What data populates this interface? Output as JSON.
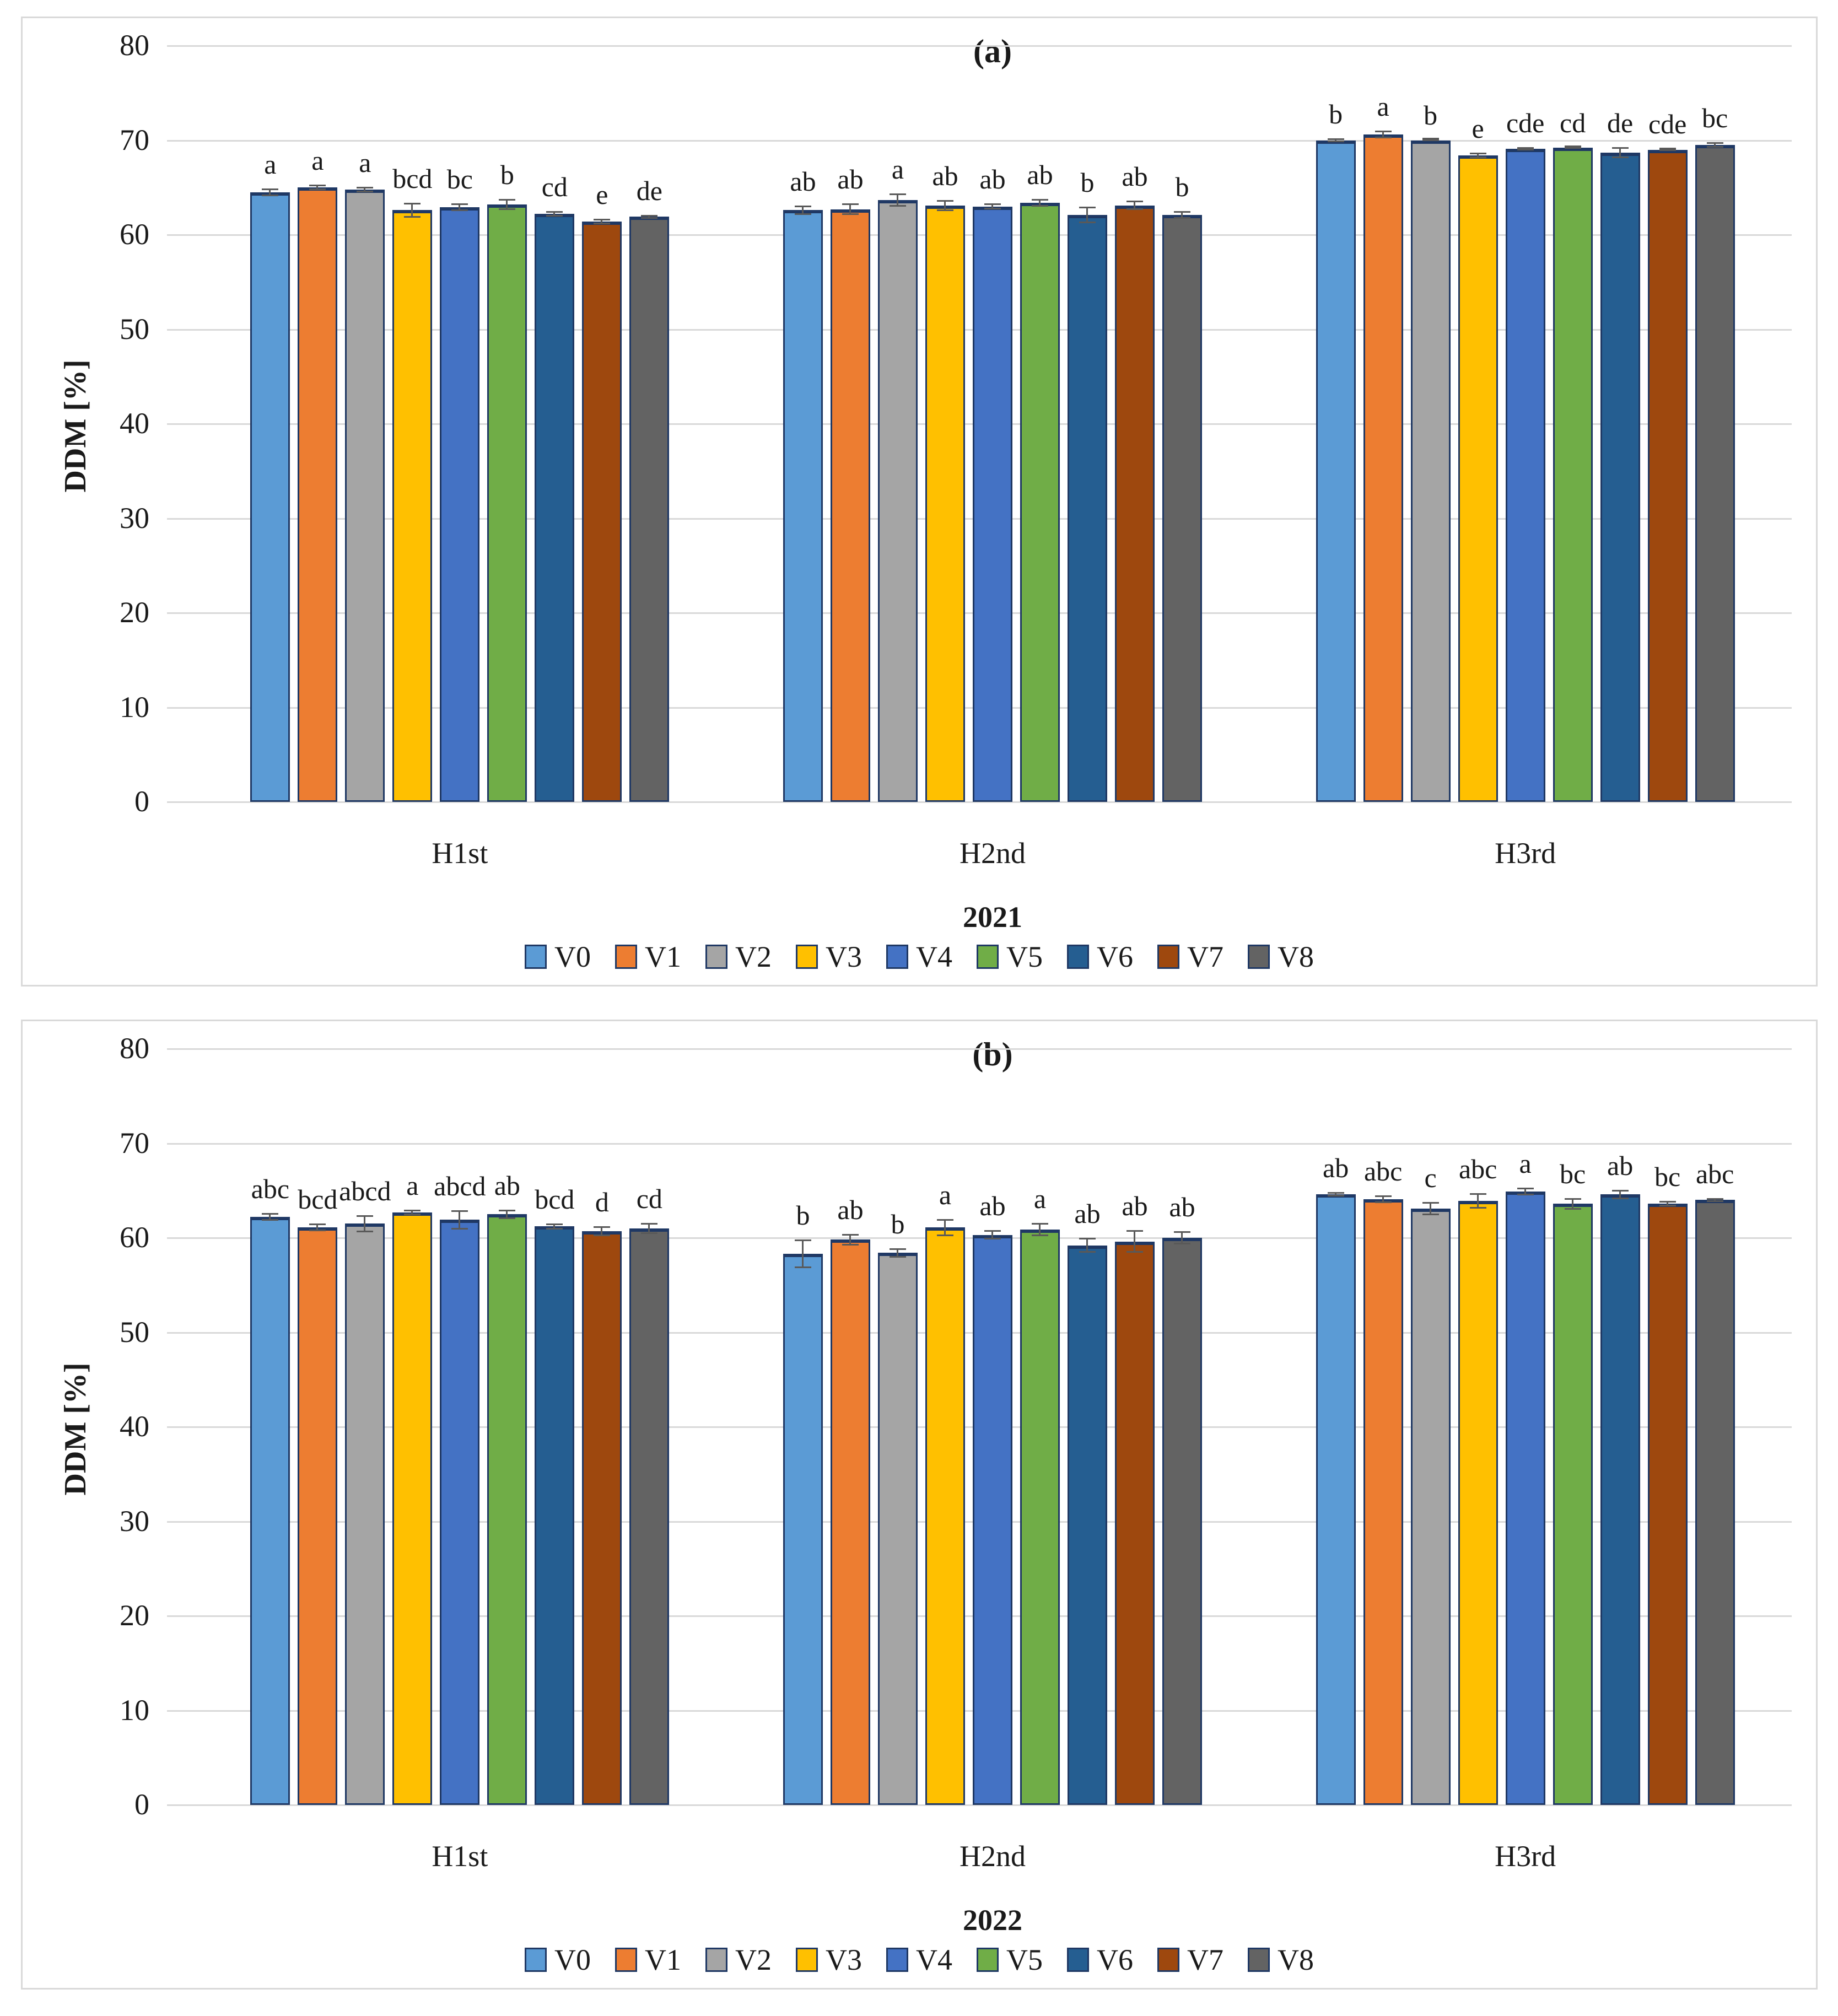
{
  "figure": {
    "description_visible_text_only": true,
    "legend_labels": [
      "V0",
      "V1",
      "V2",
      "V3",
      "V4",
      "V5",
      "V6",
      "V7",
      "V8"
    ],
    "series_colors": [
      "#5B9BD5",
      "#ED7D31",
      "#A5A5A5",
      "#FFC000",
      "#4472C4",
      "#70AD47",
      "#255E91",
      "#9E480E",
      "#636363"
    ],
    "bar_border_color": "#1F3864",
    "error_bar_color": "#595959",
    "gridline_color": "#D9D9D9"
  },
  "chart_data": [
    {
      "type": "bar",
      "title": "(a)",
      "year_label": "2021",
      "ylabel": "DDM [%]",
      "xlabel": "",
      "ylim": [
        0,
        80
      ],
      "yticks": [
        0,
        10,
        20,
        30,
        40,
        50,
        60,
        70,
        80
      ],
      "grid": true,
      "legend_position": "bottom",
      "categories": [
        "H1st",
        "H2nd",
        "H3rd"
      ],
      "series": [
        {
          "name": "V0",
          "color": "#5B9BD5",
          "values": [
            64.5,
            62.6,
            70.0
          ],
          "errors": [
            0.4,
            0.5,
            0.2
          ],
          "letters": [
            "a",
            "ab",
            "b"
          ]
        },
        {
          "name": "V1",
          "color": "#ED7D31",
          "values": [
            65.0,
            62.7,
            70.6
          ],
          "errors": [
            0.3,
            0.6,
            0.4
          ],
          "letters": [
            "a",
            "ab",
            "a"
          ]
        },
        {
          "name": "V2",
          "color": "#A5A5A5",
          "values": [
            64.8,
            63.7,
            70.0
          ],
          "errors": [
            0.3,
            0.7,
            0.1
          ],
          "letters": [
            "a",
            "a",
            "b"
          ]
        },
        {
          "name": "V3",
          "color": "#FFC000",
          "values": [
            62.6,
            63.1,
            68.4
          ],
          "errors": [
            0.8,
            0.6,
            0.3
          ],
          "letters": [
            "bcd",
            "ab",
            "e"
          ]
        },
        {
          "name": "V4",
          "color": "#4472C4",
          "values": [
            62.9,
            63.0,
            69.1
          ],
          "errors": [
            0.4,
            0.3,
            0.15
          ],
          "letters": [
            "bc",
            "ab",
            "cde"
          ]
        },
        {
          "name": "V5",
          "color": "#70AD47",
          "values": [
            63.2,
            63.4,
            69.2
          ],
          "errors": [
            0.6,
            0.4,
            0.1
          ],
          "letters": [
            "b",
            "ab",
            "cd"
          ]
        },
        {
          "name": "V6",
          "color": "#255E91",
          "values": [
            62.2,
            62.1,
            68.7
          ],
          "errors": [
            0.3,
            0.9,
            0.6
          ],
          "letters": [
            "cd",
            "b",
            "de"
          ]
        },
        {
          "name": "V7",
          "color": "#9E480E",
          "values": [
            61.4,
            63.1,
            69.0
          ],
          "errors": [
            0.3,
            0.5,
            0.15
          ],
          "letters": [
            "e",
            "ab",
            "cde"
          ]
        },
        {
          "name": "V8",
          "color": "#636363",
          "values": [
            61.9,
            62.1,
            69.5
          ],
          "errors": [
            0.2,
            0.4,
            0.3
          ],
          "letters": [
            "de",
            "b",
            "bc"
          ]
        }
      ]
    },
    {
      "type": "bar",
      "title": "(b)",
      "year_label": "2022",
      "ylabel": "DDM [%]",
      "xlabel": "",
      "ylim": [
        0,
        80
      ],
      "yticks": [
        0,
        10,
        20,
        30,
        40,
        50,
        60,
        70,
        80
      ],
      "grid": true,
      "legend_position": "bottom",
      "categories": [
        "H1st",
        "H2nd",
        "H3rd"
      ],
      "series": [
        {
          "name": "V0",
          "color": "#5B9BD5",
          "values": [
            62.2,
            58.3,
            64.6
          ],
          "errors": [
            0.4,
            1.5,
            0.25
          ],
          "letters": [
            "abc",
            "b",
            "ab"
          ]
        },
        {
          "name": "V1",
          "color": "#ED7D31",
          "values": [
            61.1,
            59.8,
            64.1
          ],
          "errors": [
            0.4,
            0.6,
            0.4
          ],
          "letters": [
            "bcd",
            "ab",
            "abc"
          ]
        },
        {
          "name": "V2",
          "color": "#A5A5A5",
          "values": [
            61.5,
            58.4,
            63.1
          ],
          "errors": [
            0.9,
            0.5,
            0.7
          ],
          "letters": [
            "abcd",
            "b",
            "c"
          ]
        },
        {
          "name": "V3",
          "color": "#FFC000",
          "values": [
            62.7,
            61.1,
            63.9
          ],
          "errors": [
            0.3,
            0.9,
            0.8
          ],
          "letters": [
            "a",
            "a",
            "abc"
          ]
        },
        {
          "name": "V4",
          "color": "#4472C4",
          "values": [
            61.9,
            60.3,
            64.9
          ],
          "errors": [
            1.0,
            0.5,
            0.4
          ],
          "letters": [
            "abcd",
            "ab",
            "a"
          ]
        },
        {
          "name": "V5",
          "color": "#70AD47",
          "values": [
            62.5,
            60.9,
            63.6
          ],
          "errors": [
            0.5,
            0.7,
            0.6
          ],
          "letters": [
            "ab",
            "a",
            "bc"
          ]
        },
        {
          "name": "V6",
          "color": "#255E91",
          "values": [
            61.2,
            59.2,
            64.6
          ],
          "errors": [
            0.3,
            0.8,
            0.5
          ],
          "letters": [
            "bcd",
            "ab",
            "ab"
          ]
        },
        {
          "name": "V7",
          "color": "#9E480E",
          "values": [
            60.7,
            59.6,
            63.6
          ],
          "errors": [
            0.5,
            1.2,
            0.3
          ],
          "letters": [
            "d",
            "ab",
            "bc"
          ]
        },
        {
          "name": "V8",
          "color": "#636363",
          "values": [
            61.0,
            60.0,
            64.0
          ],
          "errors": [
            0.6,
            0.7,
            0.2
          ],
          "letters": [
            "cd",
            "ab",
            "abc"
          ]
        }
      ]
    }
  ]
}
